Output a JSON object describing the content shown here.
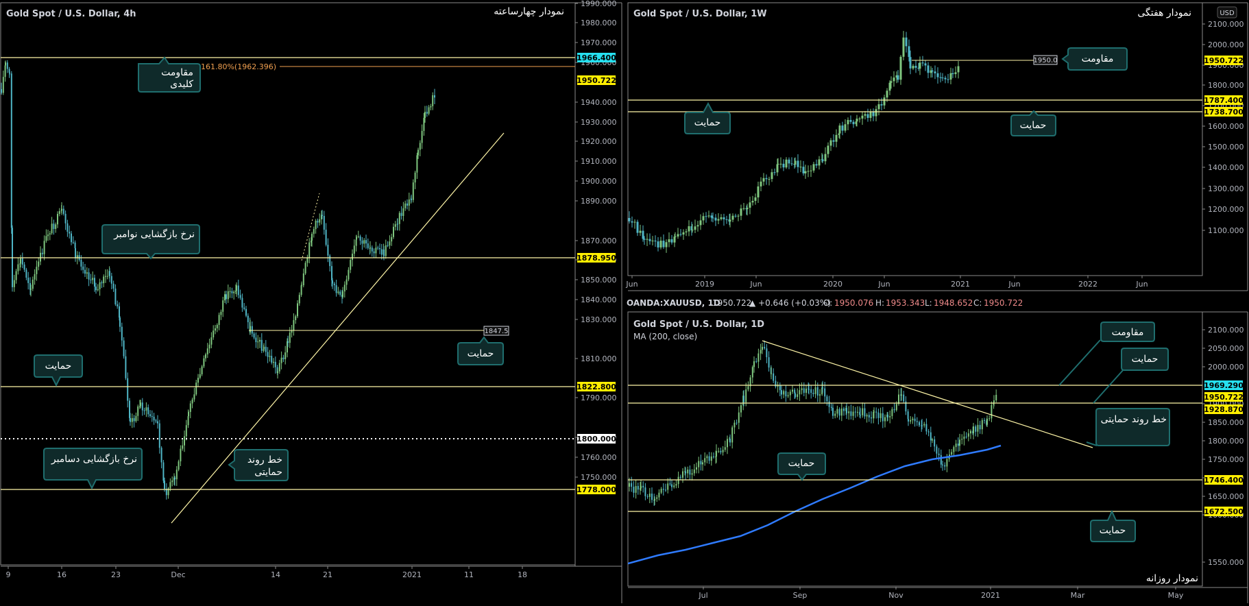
{
  "colors": {
    "background": "#000000",
    "border": "#8a8a8a",
    "level_line": "#fff6a8",
    "cyan_badge": "#26e0f0",
    "yellow_badge": "#ffee00",
    "white_badge": "#ffffff",
    "fib": "#f0a050",
    "callout_fill": "#0f2a2a",
    "callout_stroke": "#1f6e6e",
    "candle_up": "#7fc77f",
    "candle_down": "#4fb6c6",
    "ma": "#2f7bff",
    "trend": "#fff6a8"
  },
  "panel_4h": {
    "title": "Gold Spot / U.S. Dollar, 4h",
    "caption": "نمودار چهارساعته",
    "y_ticks": [
      "1990.000",
      "1980.000",
      "1970.000",
      "1960.000",
      "1940.000",
      "1930.000",
      "1920.000",
      "1910.000",
      "1900.000",
      "1890.000",
      "1870.000",
      "1860.000",
      "1850.000",
      "1840.000",
      "1830.000",
      "1810.000",
      "1790.000",
      "1770.000",
      "1760.000",
      "1750.000"
    ],
    "x_ticks": [
      "9",
      "16",
      "23",
      "Dec",
      "14",
      "21",
      "2021",
      "11",
      "18"
    ],
    "badges": [
      {
        "value": "1966.400",
        "style": "cyan"
      },
      {
        "value": "1950.722",
        "style": "yellow"
      },
      {
        "value": "1878.950",
        "style": "yellow"
      },
      {
        "value": "1822.800",
        "style": "yellow"
      },
      {
        "value": "1800.000",
        "style": "white"
      },
      {
        "value": "1778.000",
        "style": "yellow"
      }
    ],
    "fib_label": "161.80%(1962.396)",
    "level_tag": "1847.5",
    "callouts": {
      "resistance": [
        "مقاومت",
        "کلیدی"
      ],
      "nov_rate": "نرخ بازگشایی نوامبر",
      "support_right": "حمایت",
      "support_left": "حمایت",
      "dec_rate": "نرخ بازگشایی دسامبر",
      "trendline": [
        "خط روند",
        "حمایتی"
      ]
    }
  },
  "panel_1w": {
    "title": "Gold Spot / U.S. Dollar, 1W",
    "caption": "نمودار هفتگی",
    "currency": "USD",
    "y_ticks": [
      "2100.000",
      "2000.000",
      "1900.000",
      "1800.000",
      "1700.000",
      "1600.000",
      "1500.000",
      "1400.000",
      "1300.000",
      "1200.000",
      "1100.000"
    ],
    "x_ticks": [
      "Jun",
      "2019",
      "Jun",
      "2020",
      "Jun",
      "2021",
      "Jun",
      "2022",
      "Jun"
    ],
    "badges": [
      {
        "value": "1950.722",
        "style": "yellow"
      },
      {
        "value": "1787.400",
        "style": "yellow"
      },
      {
        "value": "1738.700",
        "style": "yellow"
      }
    ],
    "level_tag": "1950.0",
    "callouts": {
      "resistance": "مقاومت",
      "support_left": "حمایت",
      "support_right": "حمایت"
    }
  },
  "status_bar": {
    "symbol": "OANDA:XAUUSD, 1D",
    "price": "1950.722",
    "change": "▲ +0.646 (+0.03%)",
    "o_label": "O:",
    "o": "1950.076",
    "h_label": "H:",
    "h": "1953.343",
    "l_label": "L:",
    "l": "1948.652",
    "c_label": "C:",
    "c": "1950.722"
  },
  "panel_1d": {
    "title": "Gold Spot / U.S. Dollar, 1D",
    "ma_label": "MA (200, close)",
    "caption": "نمودار روزانه",
    "y_ticks": [
      "2100.000",
      "2050.000",
      "2000.000",
      "1900.000",
      "1850.000",
      "1800.000",
      "1750.000",
      "1700.000",
      "1650.000",
      "1600.000",
      "1550.000"
    ],
    "x_ticks": [
      "Jul",
      "Sep",
      "Nov",
      "2021",
      "Mar",
      "May"
    ],
    "badges": [
      {
        "value": "1969.290",
        "style": "cyan"
      },
      {
        "value": "1950.722",
        "style": "yellow"
      },
      {
        "value": "1928.870",
        "style": "yellow"
      },
      {
        "value": "1746.400",
        "style": "yellow"
      },
      {
        "value": "1672.500",
        "style": "yellow"
      }
    ],
    "callouts": {
      "resistance": "مقاومت",
      "support_top": "حمایت",
      "trendline": "خط روند حمایتی",
      "support_mid": "حمایت",
      "support_bottom": "حمایت"
    }
  }
}
